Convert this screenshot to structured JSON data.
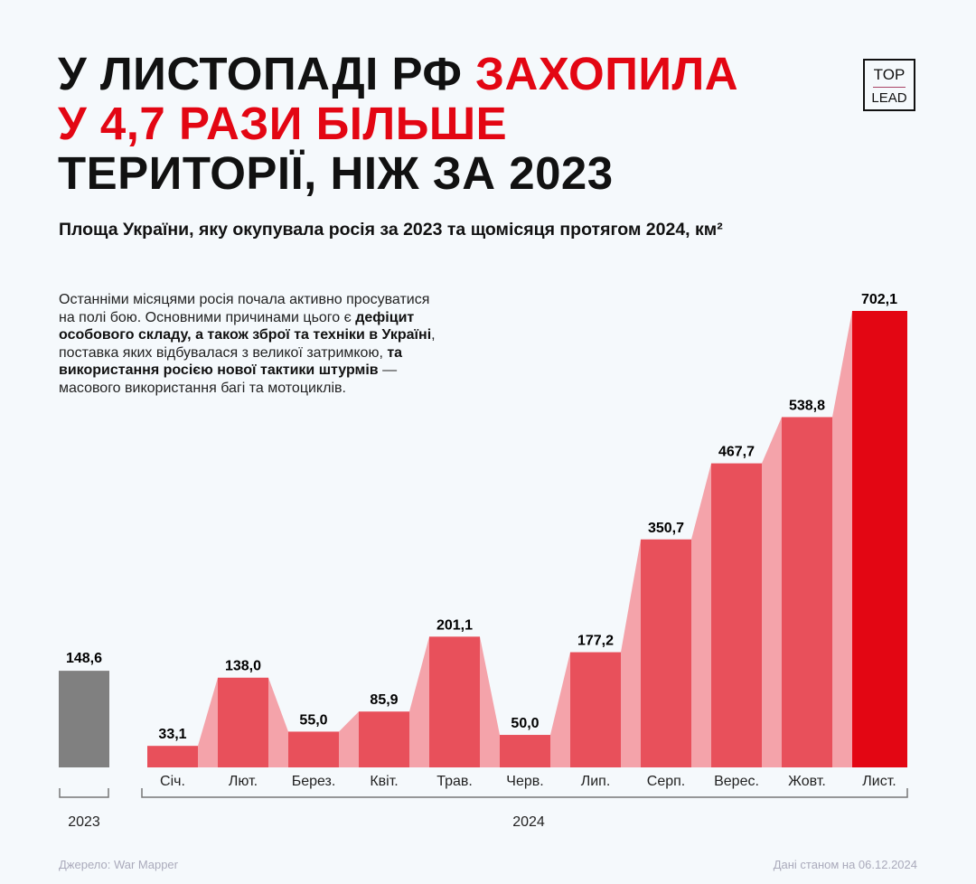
{
  "title": {
    "line1_black": "У ЛИСТОПАДІ РФ ",
    "line1_red": "ЗАХОПИЛА",
    "line2_red": "У 4,7 РАЗИ БІЛЬШЕ",
    "line3_black": "ТЕРИТОРІЇ, НІЖ ЗА 2023"
  },
  "logo": {
    "top": "TOP",
    "bottom": "LEAD"
  },
  "subtitle": "Площа України, яку окупувала росія за 2023 та щомісяця протягом 2024, км²",
  "paragraph": [
    {
      "text": "Останніми місяцями росія почала активно просуватися на полі бою. Основними причинами цього є ",
      "bold": false
    },
    {
      "text": "дефіцит особового складу, а також зброї та техніки в Україні",
      "bold": true
    },
    {
      "text": ", поставка яких відбувалася з великої затримкою, ",
      "bold": false
    },
    {
      "text": "та використання росією нової тактики штурмів",
      "bold": true
    },
    {
      "text": " — масового використання багі та мотоциклів.",
      "bold": false
    }
  ],
  "footer": {
    "source": "Джерело: War Mapper",
    "date": "Дані станом на 06.12.2024"
  },
  "colors": {
    "accent": "#e30613",
    "bar": "#e8505b",
    "connector": "#f4a3aa",
    "bar_2023": "#808080"
  },
  "chart_data": {
    "type": "bar",
    "title": "Площа України, яку окупувала росія за 2023 та щомісяця протягом 2024, км²",
    "groups": [
      {
        "label": "2023",
        "categories": [
          ""
        ],
        "values": [
          148.6
        ],
        "labels": [
          "148,6"
        ]
      },
      {
        "label": "2024",
        "categories": [
          "Січ.",
          "Лют.",
          "Берез.",
          "Квіт.",
          "Трав.",
          "Черв.",
          "Лип.",
          "Серп.",
          "Верес.",
          "Жовт.",
          "Лист."
        ],
        "values": [
          33.1,
          138.0,
          55.0,
          85.9,
          201.1,
          50.0,
          177.2,
          350.7,
          467.7,
          538.8,
          702.1
        ],
        "labels": [
          "33,1",
          "138,0",
          "55,0",
          "85,9",
          "201,1",
          "50,0",
          "177,2",
          "350,7",
          "467,7",
          "538,8",
          "702,1"
        ]
      }
    ],
    "ylim": [
      0,
      702.1
    ],
    "grid": false,
    "unit": "км²"
  }
}
